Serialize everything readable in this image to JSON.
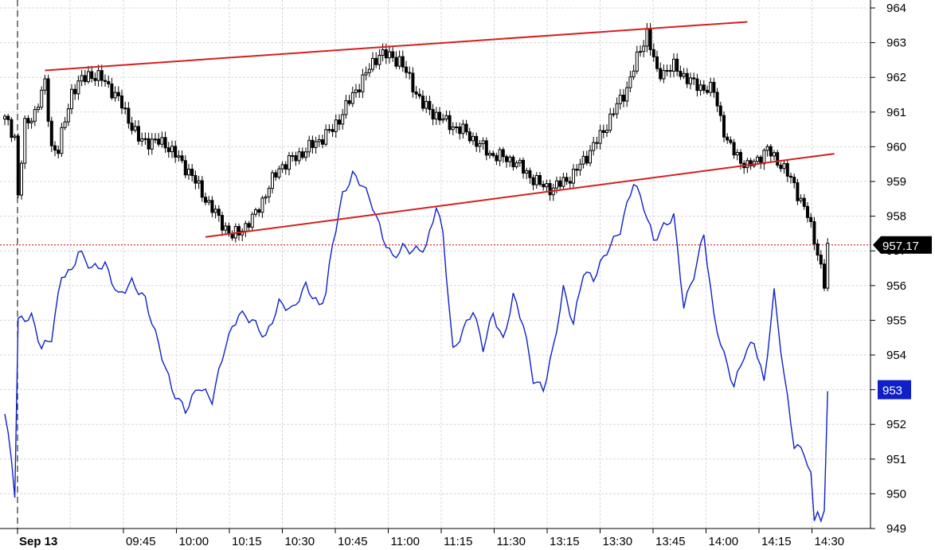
{
  "chart_data": {
    "type": "candlestick+line",
    "title": "",
    "xlabel": "",
    "ylabel": "",
    "date_label": "Sep 13",
    "time_ticks": [
      "09:45",
      "10:00",
      "10:15",
      "10:30",
      "10:45",
      "11:00",
      "11:15",
      "11:30",
      "13:15",
      "13:30",
      "13:45",
      "14:00",
      "14:15",
      "14:30"
    ],
    "y_ticks": [
      949,
      950,
      951,
      952,
      953,
      954,
      955,
      956,
      957,
      958,
      959,
      960,
      961,
      962,
      963,
      964
    ],
    "ylim": [
      948.8,
      964.2
    ],
    "grid": true,
    "reference_line": {
      "value": 957.17,
      "style": "dotted",
      "color": "#cc0000"
    },
    "last_price_badge": {
      "label": "957.17",
      "value": 957.17,
      "color": "#000000"
    },
    "line_badge": {
      "label": "953",
      "value": 953,
      "color": "#1020c8"
    },
    "price_series": {
      "name": "",
      "color": "#000000",
      "keypoints": [
        [
          0,
          960.8
        ],
        [
          3,
          960.3
        ],
        [
          4,
          958.6
        ],
        [
          6,
          960.6
        ],
        [
          9,
          961.0
        ],
        [
          12,
          961.8
        ],
        [
          14,
          960.0
        ],
        [
          16,
          959.9
        ],
        [
          20,
          961.6
        ],
        [
          25,
          962.1
        ],
        [
          30,
          961.9
        ],
        [
          35,
          961.2
        ],
        [
          40,
          960.2
        ],
        [
          48,
          960.1
        ],
        [
          55,
          959.3
        ],
        [
          62,
          958.2
        ],
        [
          68,
          957.4
        ],
        [
          74,
          957.9
        ],
        [
          82,
          959.4
        ],
        [
          90,
          959.9
        ],
        [
          98,
          960.5
        ],
        [
          106,
          961.8
        ],
        [
          112,
          962.7
        ],
        [
          118,
          962.5
        ],
        [
          125,
          961.2
        ],
        [
          132,
          960.7
        ],
        [
          138,
          960.4
        ],
        [
          145,
          959.8
        ],
        [
          152,
          959.6
        ],
        [
          160,
          958.9
        ],
        [
          164,
          958.8
        ],
        [
          170,
          959.2
        ],
        [
          178,
          960.3
        ],
        [
          186,
          961.7
        ],
        [
          190,
          962.8
        ],
        [
          192,
          963.3
        ],
        [
          195,
          962.1
        ],
        [
          200,
          962.3
        ],
        [
          206,
          961.8
        ],
        [
          212,
          961.6
        ],
        [
          216,
          960.1
        ],
        [
          222,
          959.4
        ],
        [
          228,
          959.9
        ],
        [
          232,
          959.5
        ],
        [
          236,
          958.9
        ],
        [
          240,
          958.0
        ],
        [
          243,
          957.0
        ],
        [
          245,
          956.0
        ],
        [
          246,
          957.1
        ]
      ]
    },
    "line_series": {
      "name": "",
      "color": "#1020c8",
      "keypoints": [
        [
          0,
          952.3
        ],
        [
          2,
          951.0
        ],
        [
          3,
          950.0
        ],
        [
          4,
          955.0
        ],
        [
          8,
          955.1
        ],
        [
          11,
          954.2
        ],
        [
          14,
          954.5
        ],
        [
          17,
          956.3
        ],
        [
          20,
          956.4
        ],
        [
          22,
          957.0
        ],
        [
          26,
          956.5
        ],
        [
          30,
          956.6
        ],
        [
          34,
          955.7
        ],
        [
          38,
          956.1
        ],
        [
          42,
          955.6
        ],
        [
          46,
          954.3
        ],
        [
          50,
          953.0
        ],
        [
          54,
          952.4
        ],
        [
          58,
          953.1
        ],
        [
          62,
          952.7
        ],
        [
          66,
          954.3
        ],
        [
          70,
          955.2
        ],
        [
          74,
          955.0
        ],
        [
          78,
          954.5
        ],
        [
          82,
          955.5
        ],
        [
          86,
          955.3
        ],
        [
          90,
          956.0
        ],
        [
          94,
          955.4
        ],
        [
          96,
          955.8
        ],
        [
          98,
          957.2
        ],
        [
          101,
          958.6
        ],
        [
          104,
          959.2
        ],
        [
          107,
          958.9
        ],
        [
          110,
          958.3
        ],
        [
          113,
          957.4
        ],
        [
          116,
          956.8
        ],
        [
          119,
          957.1
        ],
        [
          122,
          957.0
        ],
        [
          126,
          957.1
        ],
        [
          129,
          958.3
        ],
        [
          131,
          957.5
        ],
        [
          134,
          954.1
        ],
        [
          137,
          954.7
        ],
        [
          140,
          955.3
        ],
        [
          143,
          954.2
        ],
        [
          146,
          955.2
        ],
        [
          149,
          954.4
        ],
        [
          152,
          955.7
        ],
        [
          155,
          954.9
        ],
        [
          158,
          953.3
        ],
        [
          161,
          953.0
        ],
        [
          164,
          954.2
        ],
        [
          167,
          955.9
        ],
        [
          170,
          954.9
        ],
        [
          173,
          956.4
        ],
        [
          176,
          956.2
        ],
        [
          180,
          957.0
        ],
        [
          184,
          957.6
        ],
        [
          188,
          959.0
        ],
        [
          191,
          958.3
        ],
        [
          194,
          957.3
        ],
        [
          197,
          957.7
        ],
        [
          200,
          958.0
        ],
        [
          203,
          955.4
        ],
        [
          206,
          956.3
        ],
        [
          209,
          957.5
        ],
        [
          212,
          955.1
        ],
        [
          215,
          954.0
        ],
        [
          218,
          953.1
        ],
        [
          221,
          954.0
        ],
        [
          224,
          954.4
        ],
        [
          227,
          953.2
        ],
        [
          230,
          955.8
        ],
        [
          233,
          953.4
        ],
        [
          236,
          951.4
        ],
        [
          239,
          951.2
        ],
        [
          241,
          950.5
        ],
        [
          242,
          949.2
        ],
        [
          243,
          949.6
        ],
        [
          244,
          949.2
        ],
        [
          245,
          949.4
        ],
        [
          246,
          953.0
        ]
      ]
    },
    "trendlines": [
      {
        "name": "",
        "color": "#d42020",
        "from": [
          12,
          962.2
        ],
        "to": [
          222,
          963.6
        ]
      },
      {
        "name": "",
        "color": "#d42020",
        "from": [
          60,
          957.4
        ],
        "to": [
          248,
          959.8
        ]
      }
    ]
  }
}
